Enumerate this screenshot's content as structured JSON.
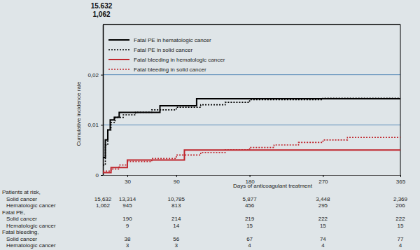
{
  "chart_data": {
    "type": "line",
    "ylabel": "Cumulative incidence rate",
    "xlabel": "Days of anticoagulant treatment",
    "annotations": [
      "15.632",
      "1,062"
    ],
    "xlim": [
      0,
      365
    ],
    "xticks": [
      30,
      90,
      180,
      270,
      365
    ],
    "ylim": [
      0,
      0.03
    ],
    "yticks": [
      0,
      {
        "value": 0.01,
        "label": "0,01"
      },
      {
        "value": 0.02,
        "label": "0,02"
      }
    ],
    "grid": true,
    "legend": "upper left",
    "series": [
      {
        "name": "Fatal PE in hematologic cancer",
        "color": "#000000",
        "line_style": "solid",
        "x": [
          0,
          3,
          6,
          9,
          14,
          20,
          70,
          115,
          365
        ],
        "values": [
          0.0035,
          0.007,
          0.009,
          0.011,
          0.0115,
          0.0125,
          0.0138,
          0.0152,
          0.0152
        ]
      },
      {
        "name": "Fatal PE in solid cancer",
        "color": "#000000",
        "line_style": "dotted",
        "x": [
          0,
          3,
          6,
          10,
          15,
          25,
          40,
          60,
          90,
          120,
          150,
          180,
          270,
          365
        ],
        "values": [
          0.002,
          0.006,
          0.009,
          0.0105,
          0.0115,
          0.012,
          0.0125,
          0.013,
          0.0135,
          0.014,
          0.0145,
          0.015,
          0.0153,
          0.0153
        ]
      },
      {
        "name": "Fatal bleeding in hematologic cancer",
        "color": "#c0262d",
        "line_style": "solid",
        "x": [
          0,
          10,
          30,
          100,
          365
        ],
        "values": [
          0.0005,
          0.0015,
          0.003,
          0.005,
          0.005
        ]
      },
      {
        "name": "Fatal bleeding in solid cancer",
        "color": "#c0262d",
        "line_style": "dotted",
        "x": [
          0,
          10,
          20,
          30,
          60,
          90,
          120,
          150,
          180,
          210,
          240,
          270,
          300,
          365
        ],
        "values": [
          0.0008,
          0.0012,
          0.002,
          0.0027,
          0.0033,
          0.004,
          0.0045,
          0.005,
          0.0055,
          0.006,
          0.0065,
          0.007,
          0.0075,
          0.0078
        ]
      }
    ],
    "risk_table": [
      {
        "label": "Patients at risk,",
        "rows": [
          {
            "label": "Solid cancer",
            "values": [
              "15,632",
              "13,314",
              "10,785",
              "5,877",
              "3,448",
              "2,369"
            ]
          },
          {
            "label": "Hematologic cancer",
            "values": [
              "1,062",
              "945",
              "813",
              "456",
              "295",
              "206"
            ]
          }
        ]
      },
      {
        "label": "Fatal PE,",
        "rows": [
          {
            "label": "Solid cancer",
            "values": [
              "190",
              "214",
              "219",
              "222",
              "222"
            ]
          },
          {
            "label": "Hematologic cancer",
            "values": [
              "9",
              "14",
              "15",
              "15",
              "15"
            ]
          }
        ]
      },
      {
        "label": "Fatal bleeding,",
        "rows": [
          {
            "label": "Solid cancer",
            "values": [
              "38",
              "56",
              "67",
              "74",
              "77"
            ]
          },
          {
            "label": "Hematologic cancer",
            "values": [
              "3",
              "3",
              "4",
              "4",
              "4"
            ]
          }
        ]
      }
    ]
  }
}
